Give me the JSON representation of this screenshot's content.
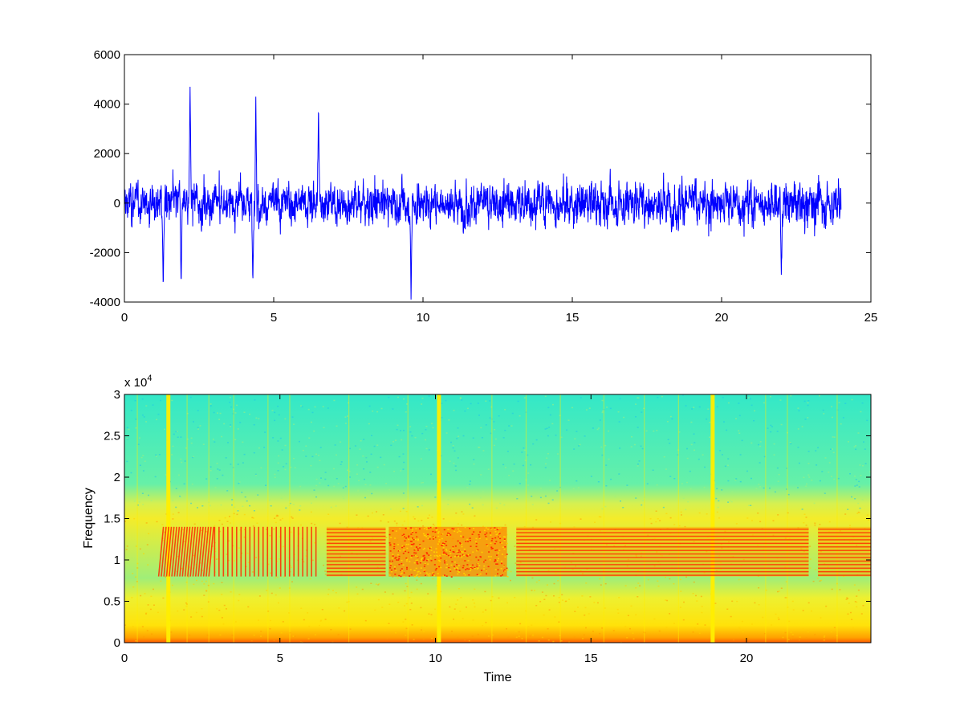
{
  "colors": {
    "background": "#ffffff",
    "waveform": "#0000ff",
    "axes": "#000000",
    "spectrogram_high": "#ff2a00",
    "spectrogram_mid": "#ffee00",
    "spectrogram_low": "#33e8c8"
  },
  "chart_data": [
    {
      "type": "line",
      "title": "",
      "xlabel": "",
      "ylabel": "",
      "xlim": [
        0,
        25
      ],
      "ylim": [
        -4000,
        6000
      ],
      "x_ticks": [
        0,
        5,
        10,
        15,
        20,
        25
      ],
      "y_ticks": [
        -4000,
        -2000,
        0,
        2000,
        4000,
        6000
      ],
      "x_tick_labels": [
        "0",
        "5",
        "10",
        "15",
        "20",
        "25"
      ],
      "y_tick_labels": [
        "-4000",
        "-2000",
        "0",
        "2000",
        "4000",
        "6000"
      ],
      "grid": false,
      "series": [
        {
          "color": "#0000ff",
          "x_range": [
            0,
            24
          ],
          "notable_extremes": [
            {
              "x": 2.2,
              "y": 4700
            },
            {
              "x": 4.4,
              "y": 4300
            },
            {
              "x": 6.5,
              "y": 4000
            },
            {
              "x": 1.3,
              "y": -3500
            },
            {
              "x": 1.9,
              "y": -3300
            },
            {
              "x": 4.3,
              "y": -3300
            },
            {
              "x": 9.6,
              "y": -3900
            },
            {
              "x": 22.0,
              "y": -2900
            }
          ],
          "typical_range": [
            -2000,
            2000
          ]
        }
      ]
    },
    {
      "type": "heatmap",
      "title": "",
      "xlabel": "Time",
      "ylabel": "Frequency",
      "xlim": [
        0,
        24
      ],
      "ylim": [
        0,
        30000
      ],
      "y_scale_label": "x 10",
      "y_scale_exponent": "4",
      "x_ticks": [
        0,
        5,
        10,
        15,
        20
      ],
      "y_ticks": [
        0,
        5000,
        10000,
        15000,
        20000,
        25000,
        30000
      ],
      "x_tick_labels": [
        "0",
        "5",
        "10",
        "15",
        "20"
      ],
      "y_tick_labels": [
        "0",
        "0.5",
        "1",
        "1.5",
        "2",
        "2.5",
        "3"
      ],
      "grid": false,
      "colormap": "jet",
      "strong_vertical_lines_at_time": [
        1.4,
        10.1,
        18.9
      ],
      "weak_vertical_lines_at_time": [
        0.4,
        2.0,
        2.7,
        3.5,
        4.6,
        5.3,
        7.2,
        9.1,
        11.8,
        12.9,
        14.0,
        15.4,
        16.7,
        17.8,
        20.6,
        21.3,
        22.9
      ],
      "band_regions": [
        {
          "time": [
            1.1,
            2.8
          ],
          "freq": [
            8000,
            14000
          ],
          "pattern": "diagonal chirps"
        },
        {
          "time": [
            2.9,
            6.3
          ],
          "freq": [
            8000,
            14000
          ],
          "pattern": "vertical chirps"
        },
        {
          "time": [
            6.5,
            8.4
          ],
          "freq": [
            8000,
            14000
          ],
          "pattern": "horizontal tones"
        },
        {
          "time": [
            8.5,
            12.3
          ],
          "freq": [
            8000,
            14000
          ],
          "pattern": "dense noise"
        },
        {
          "time": [
            12.6,
            22.0
          ],
          "freq": [
            8000,
            14000
          ],
          "pattern": "horizontal tones"
        },
        {
          "time": [
            22.3,
            24.0
          ],
          "freq": [
            8000,
            14000
          ],
          "pattern": "horizontal tones"
        }
      ]
    }
  ]
}
